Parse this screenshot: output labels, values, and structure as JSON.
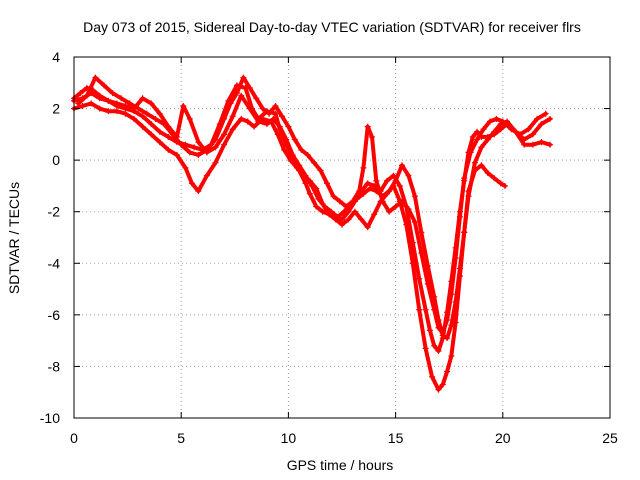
{
  "chart_data": {
    "type": "scatter",
    "title": "Day 073 of 2015, Sidereal Day-to-day VTEC variation (SDTVAR) for receiver flrs",
    "xlabel": "GPS time / hours",
    "ylabel": "SDTVAR / TECUs",
    "xlim": [
      0,
      25
    ],
    "ylim": [
      -10,
      4
    ],
    "xticks": [
      0,
      5,
      10,
      15,
      20,
      25
    ],
    "yticks": [
      -10,
      -8,
      -6,
      -4,
      -2,
      0,
      2,
      4
    ],
    "grid": true,
    "legend": "none",
    "marker": "+",
    "series_color": "#ff0000",
    "series": [
      {
        "x": [
          0.0,
          0.3,
          0.6,
          0.9,
          1.2,
          1.6,
          2.0,
          2.4,
          2.8,
          3.2,
          3.6,
          4.0,
          4.4,
          4.8,
          5.2,
          5.6,
          6.0,
          6.4,
          6.8,
          7.2,
          7.6,
          8.0,
          8.3,
          8.6,
          9.0,
          9.4,
          9.6,
          9.9,
          10.2,
          10.5,
          10.8,
          11.0,
          11.3,
          11.6,
          11.9,
          12.2,
          12.5,
          12.8,
          13.1,
          13.4,
          13.7,
          14.0,
          14.3,
          14.6,
          14.9,
          15.2,
          15.5,
          15.8,
          16.1,
          16.4,
          16.6,
          16.8,
          17.0,
          17.2,
          17.4,
          17.6,
          17.8,
          18.0,
          18.2,
          18.4,
          18.6,
          18.8,
          19.0,
          19.3,
          19.6,
          19.9,
          20.2,
          20.6,
          21.0,
          21.4,
          21.8,
          22.2
        ],
        "y": [
          2.4,
          2.6,
          2.8,
          2.7,
          2.5,
          2.3,
          2.1,
          2.0,
          1.9,
          1.7,
          1.4,
          1.1,
          0.9,
          0.7,
          0.6,
          0.5,
          0.4,
          0.6,
          1.4,
          2.3,
          2.9,
          2.8,
          2.0,
          1.6,
          1.9,
          1.8,
          1.2,
          0.6,
          0.1,
          -0.4,
          -0.9,
          -1.3,
          -1.8,
          -2.0,
          -2.1,
          -2.2,
          -2.3,
          -2.0,
          -1.6,
          -1.2,
          -0.9,
          -1.0,
          -1.2,
          -0.8,
          -0.6,
          -1.0,
          -1.8,
          -3.2,
          -4.6,
          -5.8,
          -6.6,
          -7.2,
          -7.4,
          -6.9,
          -5.9,
          -4.7,
          -3.4,
          -2.0,
          -0.8,
          0.3,
          0.9,
          1.1,
          0.9,
          0.9,
          1.0,
          1.2,
          1.4,
          1.1,
          0.8,
          1.0,
          1.4,
          1.6
        ]
      },
      {
        "x": [
          0.0,
          0.4,
          0.8,
          1.2,
          1.6,
          2.0,
          2.4,
          2.8,
          3.2,
          3.6,
          4.0,
          4.4,
          4.8,
          5.2,
          5.5,
          5.8,
          6.2,
          6.6,
          7.0,
          7.4,
          7.8,
          8.1,
          8.4,
          8.8,
          9.2,
          9.5,
          9.8,
          10.1,
          10.4,
          10.7,
          11.0,
          11.3,
          11.6,
          11.9,
          12.2,
          12.5,
          12.8,
          13.1,
          13.4,
          13.7,
          14.0,
          14.3,
          14.6,
          14.9,
          15.2,
          15.5,
          15.8,
          16.1,
          16.4,
          16.7,
          17.0,
          17.2,
          17.4,
          17.6,
          17.8,
          18.0,
          18.2,
          18.4,
          18.7,
          19.0,
          19.3,
          19.6,
          19.9,
          20.1
        ],
        "y": [
          2.0,
          2.1,
          2.2,
          2.0,
          1.9,
          1.9,
          1.8,
          1.6,
          1.3,
          1.0,
          0.7,
          0.4,
          0.2,
          -0.3,
          -0.9,
          -1.2,
          -0.6,
          -0.1,
          0.6,
          1.2,
          1.6,
          1.5,
          1.3,
          1.6,
          1.5,
          1.0,
          0.4,
          0.0,
          -0.3,
          -0.6,
          -0.8,
          -1.1,
          -1.7,
          -2.1,
          -2.3,
          -2.5,
          -2.3,
          -2.0,
          -2.3,
          -2.6,
          -2.1,
          -1.6,
          -1.3,
          -1.0,
          -1.6,
          -2.5,
          -4.0,
          -5.8,
          -7.3,
          -8.4,
          -8.9,
          -8.7,
          -8.2,
          -7.6,
          -6.3,
          -4.5,
          -2.8,
          -1.2,
          -0.4,
          -0.2,
          -0.5,
          -0.7,
          -0.9,
          -1.0
        ]
      },
      {
        "x": [
          0.2,
          0.6,
          1.0,
          1.4,
          1.8,
          2.2,
          2.6,
          3.0,
          3.4,
          3.8,
          4.2,
          4.6,
          5.0,
          5.4,
          5.8,
          6.2,
          6.6,
          7.0,
          7.3,
          7.6,
          7.9,
          8.2,
          8.5,
          8.8,
          9.1,
          9.4,
          9.7,
          10.0,
          10.3,
          10.6,
          10.9,
          11.2,
          11.5,
          11.8,
          12.1,
          12.4,
          12.7,
          13.0,
          13.3,
          13.5,
          13.7,
          13.9,
          14.1,
          14.4,
          14.7,
          15.0,
          15.3,
          15.6,
          15.9,
          16.2,
          16.5,
          16.8,
          17.0,
          17.2,
          17.4,
          17.6,
          17.8,
          18.0,
          18.2,
          18.5,
          18.8,
          19.1,
          19.4,
          19.7,
          20.0,
          20.4,
          20.8,
          21.2,
          21.6,
          22.0
        ],
        "y": [
          2.2,
          2.5,
          3.2,
          2.9,
          2.6,
          2.4,
          2.2,
          2.0,
          1.8,
          1.6,
          1.4,
          1.0,
          0.6,
          0.3,
          0.2,
          0.4,
          0.8,
          1.6,
          2.2,
          2.6,
          3.2,
          2.8,
          2.4,
          2.0,
          1.8,
          2.1,
          1.7,
          1.3,
          0.8,
          0.4,
          0.2,
          -0.1,
          -0.4,
          -0.9,
          -1.4,
          -1.6,
          -1.8,
          -1.6,
          -1.2,
          -0.3,
          1.3,
          0.9,
          -0.8,
          -1.6,
          -2.0,
          -1.8,
          -1.6,
          -1.9,
          -2.4,
          -3.6,
          -4.8,
          -5.8,
          -6.5,
          -6.7,
          -6.2,
          -5.2,
          -3.8,
          -2.2,
          -0.7,
          0.3,
          0.8,
          1.2,
          1.5,
          1.6,
          1.5,
          1.2,
          1.0,
          1.2,
          1.6,
          1.8
        ]
      },
      {
        "x": [
          0.0,
          0.4,
          0.8,
          1.2,
          1.6,
          2.0,
          2.4,
          2.8,
          3.2,
          3.6,
          4.0,
          4.4,
          4.8,
          5.1,
          5.4,
          5.8,
          6.2,
          6.6,
          7.0,
          7.4,
          7.8,
          8.2,
          8.6,
          9.0,
          9.3,
          9.6,
          9.9,
          10.2,
          10.5,
          10.8,
          11.1,
          11.4,
          11.7,
          12.0,
          12.3,
          12.6,
          12.9,
          13.2,
          13.5,
          13.8,
          14.1,
          14.4,
          14.7,
          15.0,
          15.3,
          15.6,
          15.9,
          16.2,
          16.5,
          16.8,
          17.0,
          17.2,
          17.4,
          17.6,
          17.8,
          18.0,
          18.2,
          18.4,
          18.7,
          19.0,
          19.3,
          19.6,
          19.9,
          20.2,
          20.6,
          21.0,
          21.4,
          21.8,
          22.2
        ],
        "y": [
          2.3,
          2.4,
          2.6,
          2.4,
          2.3,
          2.2,
          2.1,
          2.0,
          2.4,
          2.2,
          1.8,
          1.3,
          0.9,
          2.1,
          1.6,
          0.7,
          0.3,
          0.5,
          1.0,
          1.7,
          2.5,
          2.0,
          1.5,
          1.4,
          1.6,
          1.3,
          0.8,
          0.2,
          -0.2,
          -0.6,
          -1.0,
          -1.5,
          -1.8,
          -2.0,
          -2.2,
          -2.0,
          -1.7,
          -1.5,
          -1.3,
          -1.1,
          -1.2,
          -1.4,
          -1.2,
          -0.8,
          -0.2,
          -0.6,
          -1.4,
          -2.8,
          -4.1,
          -5.3,
          -6.2,
          -6.8,
          -6.9,
          -6.4,
          -5.5,
          -4.2,
          -2.8,
          -1.4,
          -0.1,
          0.5,
          0.8,
          1.1,
          1.4,
          1.5,
          1.1,
          0.6,
          0.6,
          0.7,
          0.6
        ]
      }
    ]
  }
}
